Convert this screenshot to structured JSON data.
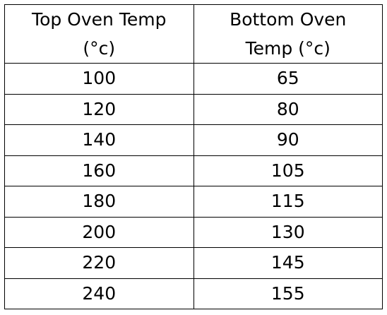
{
  "table": {
    "header": [
      "Top Oven Temp (°c)",
      "Bottom Oven Temp (°c)"
    ],
    "rows": [
      [
        100,
        65
      ],
      [
        120,
        80
      ],
      [
        140,
        90
      ],
      [
        160,
        105
      ],
      [
        180,
        115
      ],
      [
        200,
        130
      ],
      [
        220,
        145
      ],
      [
        240,
        155
      ]
    ]
  }
}
